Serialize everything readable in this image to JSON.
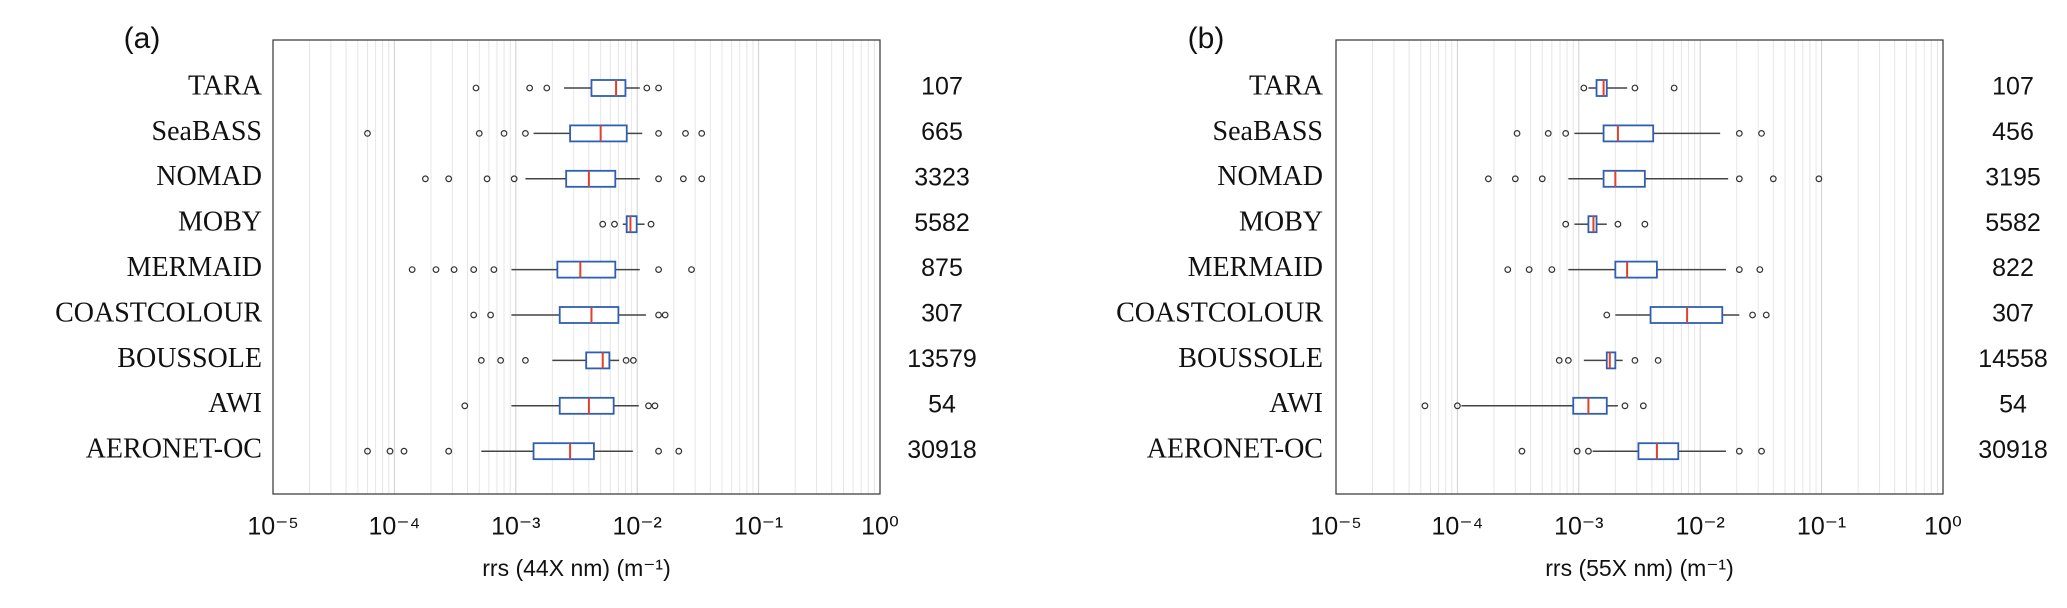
{
  "chart_data": [
    {
      "type": "box",
      "panel": "(a)",
      "xlabel": "rrs (44X nm) (m⁻¹)",
      "log_x": true,
      "grid": true,
      "box_color": "#2f5fb0",
      "median_color": "#e0412c",
      "whisker_color": "#444444",
      "categories": [
        "TARA",
        "SeaBASS",
        "NOMAD",
        "MOBY",
        "MERMAID",
        "COASTCOLOUR",
        "BOUSSOLE",
        "AWI",
        "AERONET-OC"
      ],
      "counts": [
        107,
        665,
        3323,
        5582,
        875,
        307,
        13579,
        54,
        30918
      ],
      "boxes": [
        {
          "whisker_low": 0.0025,
          "q1": 0.0042,
          "median": 0.0067,
          "q3": 0.008,
          "whisker_high": 0.0105,
          "outliers": [
            0.00047,
            0.0013,
            0.0018,
            0.012,
            0.015
          ]
        },
        {
          "whisker_low": 0.0014,
          "q1": 0.0028,
          "median": 0.005,
          "q3": 0.0082,
          "whisker_high": 0.011,
          "outliers": [
            6e-05,
            0.0005,
            0.0008,
            0.0012,
            0.015,
            0.025,
            0.034
          ]
        },
        {
          "whisker_low": 0.0012,
          "q1": 0.0026,
          "median": 0.004,
          "q3": 0.0066,
          "whisker_high": 0.0105,
          "outliers": [
            0.00018,
            0.00028,
            0.00058,
            0.00097,
            0.015,
            0.024,
            0.034
          ]
        },
        {
          "whisker_low": 0.0076,
          "q1": 0.0082,
          "median": 0.0088,
          "q3": 0.0099,
          "whisker_high": 0.0115,
          "outliers": [
            0.0052,
            0.0065,
            0.013
          ]
        },
        {
          "whisker_low": 0.00092,
          "q1": 0.0022,
          "median": 0.0034,
          "q3": 0.0066,
          "whisker_high": 0.0105,
          "outliers": [
            0.00014,
            0.00022,
            0.00031,
            0.00045,
            0.00066,
            0.015,
            0.028
          ]
        },
        {
          "whisker_low": 0.00092,
          "q1": 0.0023,
          "median": 0.0042,
          "q3": 0.007,
          "whisker_high": 0.0118,
          "outliers": [
            0.00045,
            0.00062,
            0.015,
            0.017
          ]
        },
        {
          "whisker_low": 0.002,
          "q1": 0.0038,
          "median": 0.0052,
          "q3": 0.0059,
          "whisker_high": 0.0071,
          "outliers": [
            0.00052,
            0.00075,
            0.0012,
            0.0081,
            0.0093
          ]
        },
        {
          "whisker_low": 0.00092,
          "q1": 0.0023,
          "median": 0.004,
          "q3": 0.0064,
          "whisker_high": 0.0103,
          "outliers": [
            0.00038,
            0.0124,
            0.014
          ]
        },
        {
          "whisker_low": 0.00052,
          "q1": 0.0014,
          "median": 0.0028,
          "q3": 0.0044,
          "whisker_high": 0.0092,
          "outliers": [
            6e-05,
            9.2e-05,
            0.00012,
            0.00028,
            0.015,
            0.022
          ]
        }
      ],
      "xlim": [
        1e-05,
        1
      ],
      "xticks": [
        {
          "value": 1e-05,
          "label": "10⁻⁵"
        },
        {
          "value": 0.0001,
          "label": "10⁻⁴"
        },
        {
          "value": 0.001,
          "label": "10⁻³"
        },
        {
          "value": 0.01,
          "label": "10⁻²"
        },
        {
          "value": 0.1,
          "label": "10⁻¹"
        },
        {
          "value": 1,
          "label": "10⁰"
        }
      ],
      "xminorticks": [
        2e-05,
        3e-05,
        4e-05,
        5e-05,
        6e-05,
        7e-05,
        8e-05,
        9e-05,
        0.0002,
        0.0003,
        0.0004,
        0.0005,
        0.0006,
        0.0007,
        0.0008,
        0.0009,
        0.002,
        0.003,
        0.004,
        0.005,
        0.006,
        0.007,
        0.008,
        0.009,
        0.02,
        0.03,
        0.04,
        0.05,
        0.06,
        0.07,
        0.08,
        0.09,
        0.2,
        0.3,
        0.4,
        0.5,
        0.6,
        0.7,
        0.8,
        0.9
      ]
    },
    {
      "type": "box",
      "panel": "(b)",
      "xlabel": "rrs (55X nm) (m⁻¹)",
      "log_x": true,
      "grid": true,
      "box_color": "#2f5fb0",
      "median_color": "#e0412c",
      "whisker_color": "#444444",
      "categories": [
        "TARA",
        "SeaBASS",
        "NOMAD",
        "MOBY",
        "MERMAID",
        "COASTCOLOUR",
        "BOUSSOLE",
        "AWI",
        "AERONET-OC"
      ],
      "counts": [
        107,
        456,
        3195,
        5582,
        822,
        307,
        14558,
        54,
        30918
      ],
      "boxes": [
        {
          "whisker_low": 0.0012,
          "q1": 0.0014,
          "median": 0.0016,
          "q3": 0.0017,
          "whisker_high": 0.0025,
          "outliers": [
            0.0011,
            0.0029,
            0.0061
          ]
        },
        {
          "whisker_low": 0.00092,
          "q1": 0.0016,
          "median": 0.0021,
          "q3": 0.0041,
          "whisker_high": 0.0146,
          "outliers": [
            0.00031,
            0.00056,
            0.00078,
            0.021,
            0.032
          ]
        },
        {
          "whisker_low": 0.00082,
          "q1": 0.0016,
          "median": 0.002,
          "q3": 0.0035,
          "whisker_high": 0.017,
          "outliers": [
            0.00018,
            0.0003,
            0.0005,
            0.021,
            0.04,
            0.095
          ]
        },
        {
          "whisker_low": 0.00092,
          "q1": 0.0012,
          "median": 0.00132,
          "q3": 0.0014,
          "whisker_high": 0.0017,
          "outliers": [
            0.00078,
            0.0021,
            0.0035
          ]
        },
        {
          "whisker_low": 0.00082,
          "q1": 0.002,
          "median": 0.0025,
          "q3": 0.0044,
          "whisker_high": 0.0163,
          "outliers": [
            0.00026,
            0.00039,
            0.0006,
            0.021,
            0.031
          ]
        },
        {
          "whisker_low": 0.002,
          "q1": 0.0039,
          "median": 0.0078,
          "q3": 0.0152,
          "whisker_high": 0.021,
          "outliers": [
            0.0017,
            0.027,
            0.035
          ]
        },
        {
          "whisker_low": 0.0011,
          "q1": 0.0017,
          "median": 0.0018,
          "q3": 0.002,
          "whisker_high": 0.0023,
          "outliers": [
            0.00069,
            0.00082,
            0.0029,
            0.0045
          ]
        },
        {
          "whisker_low": 0.000108,
          "q1": 0.0009,
          "median": 0.0012,
          "q3": 0.0017,
          "whisker_high": 0.0021,
          "outliers": [
            5.4e-05,
            0.0001,
            0.0024,
            0.0034
          ]
        },
        {
          "whisker_low": 0.0013,
          "q1": 0.0031,
          "median": 0.0044,
          "q3": 0.0066,
          "whisker_high": 0.0163,
          "outliers": [
            0.00034,
            0.00097,
            0.0012,
            0.021,
            0.032
          ]
        }
      ],
      "xlim": [
        1e-05,
        1
      ],
      "xticks": [
        {
          "value": 1e-05,
          "label": "10⁻⁵"
        },
        {
          "value": 0.0001,
          "label": "10⁻⁴"
        },
        {
          "value": 0.001,
          "label": "10⁻³"
        },
        {
          "value": 0.01,
          "label": "10⁻²"
        },
        {
          "value": 0.1,
          "label": "10⁻¹"
        },
        {
          "value": 1,
          "label": "10⁰"
        }
      ],
      "xminorticks": [
        2e-05,
        3e-05,
        4e-05,
        5e-05,
        6e-05,
        7e-05,
        8e-05,
        9e-05,
        0.0002,
        0.0003,
        0.0004,
        0.0005,
        0.0006,
        0.0007,
        0.0008,
        0.0009,
        0.002,
        0.003,
        0.004,
        0.005,
        0.006,
        0.007,
        0.008,
        0.009,
        0.02,
        0.03,
        0.04,
        0.05,
        0.06,
        0.07,
        0.08,
        0.09,
        0.2,
        0.3,
        0.4,
        0.5,
        0.6,
        0.7,
        0.8,
        0.9
      ]
    }
  ]
}
